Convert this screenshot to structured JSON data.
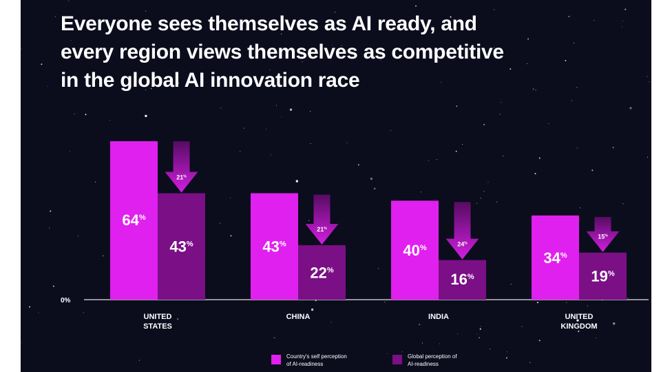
{
  "title_lines": [
    "Everyone sees themselves as AI ready, and",
    "every region views themselves as competitive",
    "in the global AI innovation race"
  ],
  "colors": {
    "background": "#0b0c1c",
    "self": "#e020ee",
    "global": "#7a0f86",
    "arrow_top": "#560c62",
    "arrow_bottom": "#d21ee0"
  },
  "chart_data": {
    "type": "bar",
    "categories": [
      [
        "UNITED",
        "STATES"
      ],
      [
        "CHINA"
      ],
      [
        "INDIA"
      ],
      [
        "UNITED",
        "KINGDOM"
      ]
    ],
    "series": [
      {
        "name": "Country's self perception of AI-readiness",
        "values": [
          64,
          43,
          40,
          34
        ]
      },
      {
        "name": "Global perception of AI-readiness",
        "values": [
          43,
          22,
          16,
          19
        ]
      }
    ],
    "difference_labels": [
      21,
      21,
      24,
      15
    ],
    "value_suffix": "%",
    "y_tick_label": "0%",
    "ylim": [
      0,
      64
    ],
    "grid": false,
    "legend_position": "bottom-center"
  },
  "legend": [
    {
      "lines": [
        "Country's self perception",
        "of AI-readiness"
      ]
    },
    {
      "lines": [
        "Global perception of",
        "AI-readiness"
      ]
    }
  ]
}
